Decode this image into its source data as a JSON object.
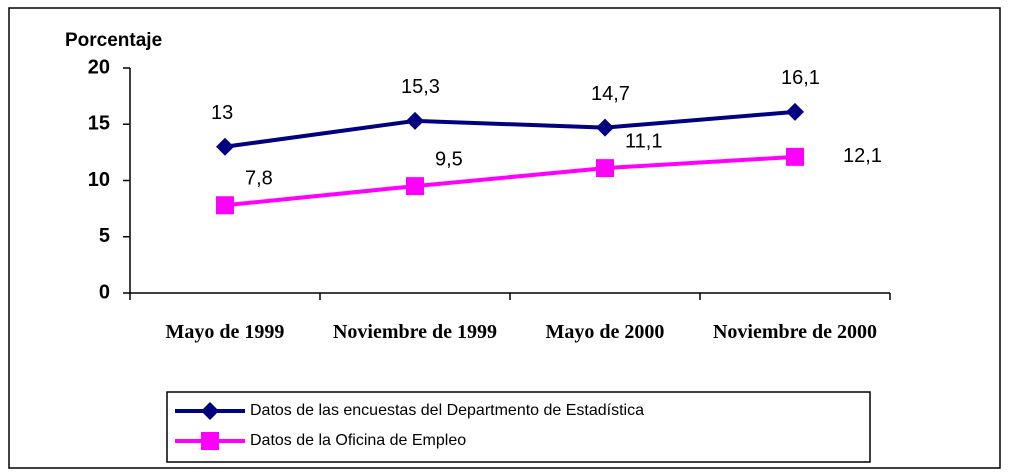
{
  "chart_data": {
    "type": "line",
    "y_label": "Porcentaje",
    "categories": [
      "Mayo de 1999",
      "Noviembre de 1999",
      "Mayo de 2000",
      "Noviembre de 2000"
    ],
    "series": [
      {
        "name": "Datos de las encuestas del Departmento de Estadística",
        "color": "#000080",
        "marker": "diamond",
        "values": [
          13,
          15.3,
          14.7,
          16.1
        ],
        "value_labels": [
          "13",
          "15,3",
          "14,7",
          "16,1"
        ]
      },
      {
        "name": "Datos de la Oficina de Empleo",
        "color": "#ff00ff",
        "marker": "square",
        "values": [
          7.8,
          9.5,
          11.1,
          12.1
        ],
        "value_labels": [
          "7,8",
          "9,5",
          "11,1",
          "12,1"
        ]
      }
    ],
    "ylim": [
      0,
      20
    ],
    "yticks": [
      0,
      5,
      10,
      15,
      20
    ],
    "grid": false
  }
}
